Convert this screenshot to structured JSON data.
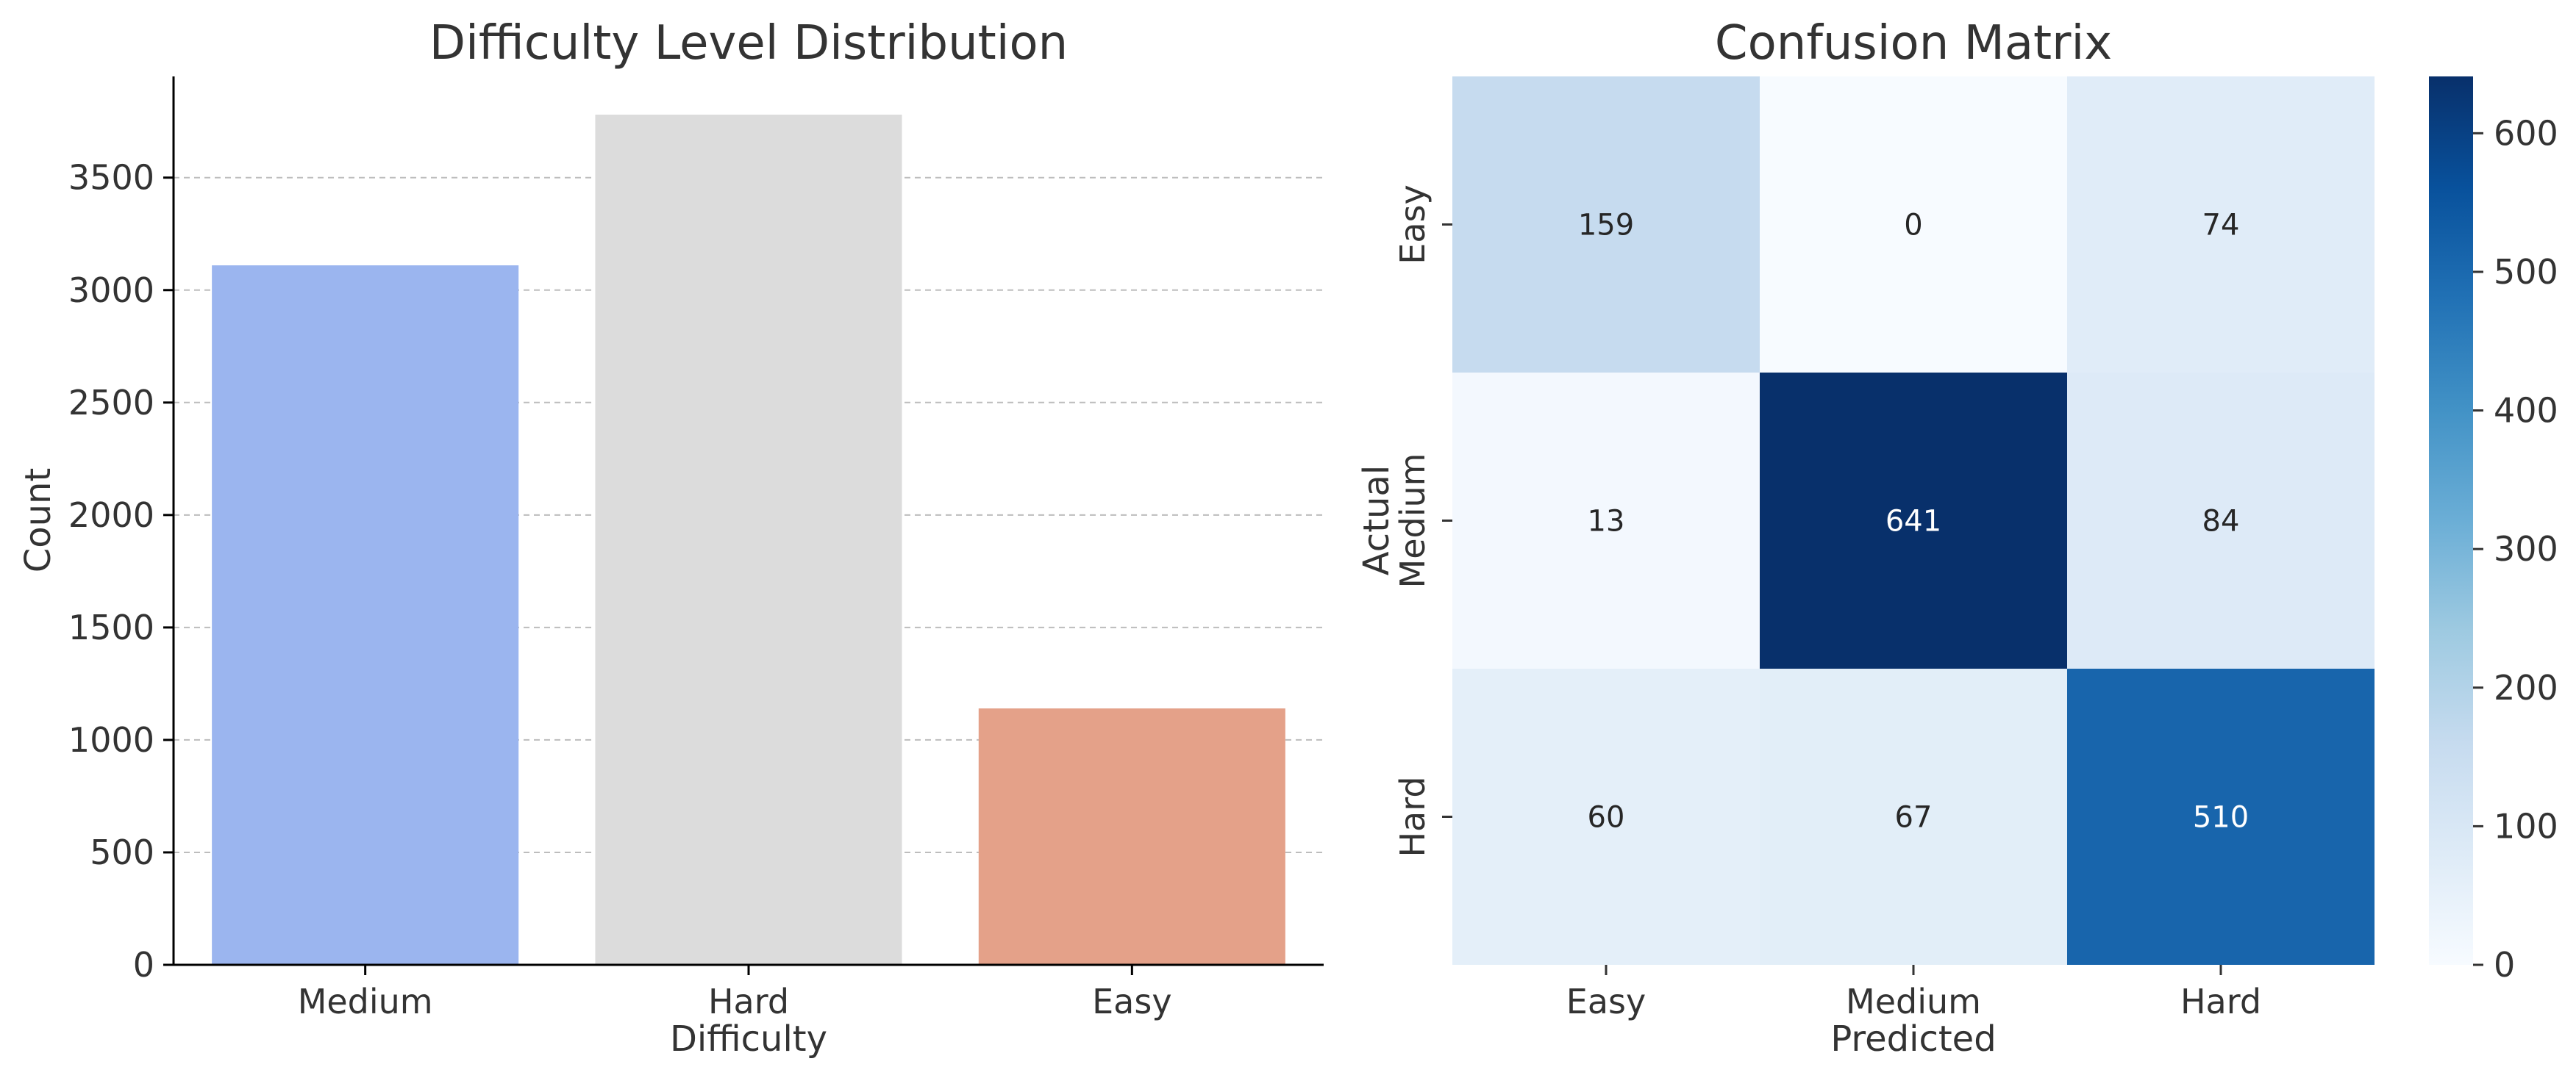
{
  "chart_data": [
    {
      "type": "bar",
      "title": "Difficulty Level Distribution",
      "xlabel": "Difficulty",
      "ylabel": "Count",
      "categories": [
        "Medium",
        "Hard",
        "Easy"
      ],
      "values": [
        3110,
        3780,
        1140
      ],
      "colors": [
        "#9bb5ef",
        "#dcdcdc",
        "#e4a189"
      ],
      "ylim": [
        0,
        3950
      ],
      "yticks": [
        0,
        500,
        1000,
        1500,
        2000,
        2500,
        3000,
        3500
      ],
      "grid": "y-dashed",
      "legend": "none"
    },
    {
      "type": "heatmap",
      "title": "Confusion Matrix",
      "xlabel": "Predicted",
      "ylabel": "Actual",
      "x_categories": [
        "Easy",
        "Medium",
        "Hard"
      ],
      "y_categories": [
        "Easy",
        "Medium",
        "Hard"
      ],
      "values": [
        [
          159,
          0,
          74
        ],
        [
          13,
          641,
          84
        ],
        [
          60,
          67,
          510
        ]
      ],
      "colormap": "Blues",
      "colorbar": {
        "min": 0,
        "max": 641,
        "ticks": [
          0,
          100,
          200,
          300,
          400,
          500,
          600
        ]
      }
    }
  ]
}
